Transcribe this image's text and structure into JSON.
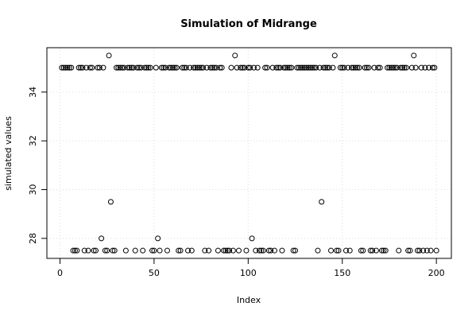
{
  "chart_data": {
    "type": "scatter",
    "title": "Simulation of Midrange",
    "xlabel": "Index",
    "ylabel": "simulated values",
    "x": [
      1,
      2,
      3,
      4,
      5,
      6,
      7,
      8,
      9,
      10,
      11,
      12,
      13,
      14,
      15,
      16,
      17,
      18,
      19,
      20,
      21,
      22,
      23,
      24,
      25,
      26,
      27,
      28,
      29,
      30,
      31,
      32,
      33,
      34,
      35,
      36,
      37,
      38,
      39,
      40,
      41,
      42,
      43,
      44,
      45,
      46,
      47,
      48,
      49,
      50,
      51,
      52,
      53,
      54,
      55,
      56,
      57,
      58,
      59,
      60,
      61,
      62,
      63,
      64,
      65,
      66,
      67,
      68,
      69,
      70,
      71,
      72,
      73,
      74,
      75,
      76,
      77,
      78,
      79,
      80,
      81,
      82,
      83,
      84,
      85,
      86,
      87,
      88,
      89,
      90,
      91,
      92,
      93,
      94,
      95,
      96,
      97,
      98,
      99,
      100,
      101,
      102,
      103,
      104,
      105,
      106,
      107,
      108,
      109,
      110,
      111,
      112,
      113,
      114,
      115,
      116,
      117,
      118,
      119,
      120,
      121,
      122,
      123,
      124,
      125,
      126,
      127,
      128,
      129,
      130,
      131,
      132,
      133,
      134,
      135,
      136,
      137,
      138,
      139,
      140,
      141,
      142,
      143,
      144,
      145,
      146,
      147,
      148,
      149,
      150,
      151,
      152,
      153,
      154,
      155,
      156,
      157,
      158,
      159,
      160,
      161,
      162,
      163,
      164,
      165,
      166,
      167,
      168,
      169,
      170,
      171,
      172,
      173,
      174,
      175,
      176,
      177,
      178,
      179,
      180,
      181,
      182,
      183,
      184,
      185,
      186,
      187,
      188,
      189,
      190,
      191,
      192,
      193,
      194,
      195,
      196,
      197,
      198,
      199,
      200
    ],
    "values": [
      35,
      35,
      35,
      35,
      35,
      35,
      27.5,
      27.5,
      27.5,
      35,
      35,
      35,
      27.5,
      35,
      27.5,
      35,
      35,
      27.5,
      27.5,
      35,
      35,
      28,
      35,
      27.5,
      27.5,
      35.5,
      29.5,
      27.5,
      27.5,
      35,
      35,
      35,
      35,
      35,
      27.5,
      35,
      35,
      35,
      35,
      27.5,
      35,
      35,
      35,
      27.5,
      35,
      35,
      35,
      35,
      27.5,
      27.5,
      35,
      28,
      27.5,
      35,
      35,
      35,
      27.5,
      35,
      35,
      35,
      35,
      35,
      27.5,
      27.5,
      35,
      35,
      35,
      27.5,
      35,
      27.5,
      35,
      35,
      35,
      35,
      35,
      35,
      27.5,
      35,
      27.5,
      35,
      35,
      35,
      35,
      27.5,
      35,
      35,
      27.5,
      27.5,
      27.5,
      27.5,
      35,
      27.5,
      35.5,
      35,
      27.5,
      35,
      35,
      35,
      27.5,
      35,
      35,
      28,
      35,
      27.5,
      35,
      27.5,
      27.5,
      27.5,
      35,
      35,
      27.5,
      27.5,
      35,
      27.5,
      35,
      35,
      35,
      27.5,
      35,
      35,
      35,
      35,
      35,
      27.5,
      27.5,
      35,
      35,
      35,
      35,
      35,
      35,
      35,
      35,
      35,
      35,
      35,
      27.5,
      35,
      29.5,
      35,
      35,
      35,
      35,
      27.5,
      35,
      35.5,
      27.5,
      27.5,
      35,
      35,
      35,
      27.5,
      35,
      27.5,
      35,
      35,
      35,
      35,
      35,
      27.5,
      27.5,
      35,
      35,
      35,
      27.5,
      27.5,
      35,
      27.5,
      35,
      35,
      27.5,
      27.5,
      27.5,
      35,
      35,
      35,
      35,
      35,
      35,
      27.5,
      35,
      35,
      35,
      35,
      27.5,
      27.5,
      35,
      35.5,
      35,
      27.5,
      27.5,
      35,
      27.5,
      35,
      27.5,
      35,
      27.5,
      35,
      35,
      27.5
    ],
    "color": "#000000",
    "xlim": [
      -6.96,
      207.96
    ],
    "ylim": [
      27.18,
      35.82
    ],
    "xticks": [
      0,
      50,
      100,
      150,
      200
    ],
    "yticks": [
      28,
      30,
      32,
      34
    ],
    "grid": true
  }
}
